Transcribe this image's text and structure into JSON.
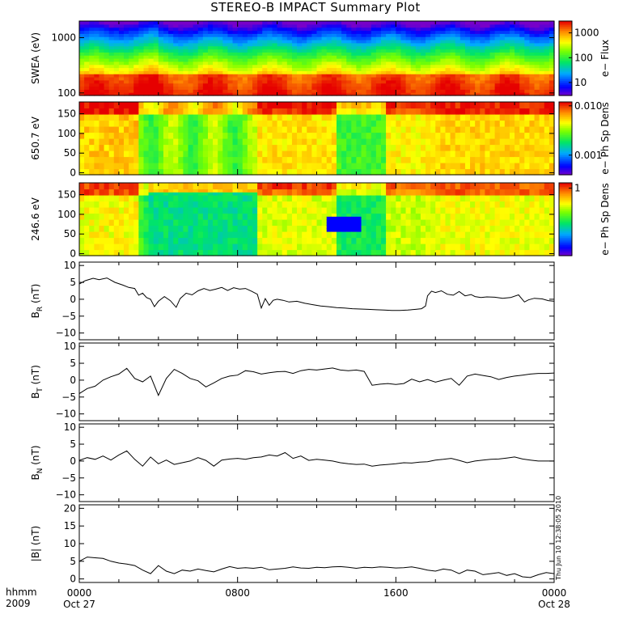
{
  "title": "STEREO-B IMPACT Summary Plot",
  "timestamp": "Thu Jun 10 12:38:05 2010",
  "x_axis": {
    "row1_label": "hhmm",
    "row2_label": "2009",
    "ticks": [
      {
        "hour": 0,
        "time": "0000",
        "date": "Oct 27"
      },
      {
        "hour": 8,
        "time": "0800",
        "date": ""
      },
      {
        "hour": 16,
        "time": "1600",
        "date": ""
      },
      {
        "hour": 24,
        "time": "0000",
        "date": "Oct 28"
      }
    ]
  },
  "colors": {
    "axis": "#000000",
    "line": "#000000",
    "background": "#ffffff"
  },
  "chart_data": [
    {
      "type": "heatmap",
      "panel": "swea",
      "ylabel": "SWEA (eV)",
      "yscale": "log",
      "ylim": [
        90,
        2000
      ],
      "yticks": [
        {
          "v": 100,
          "t": "100"
        },
        {
          "v": 1000,
          "t": "1000"
        }
      ],
      "colorbar": {
        "label": "e− Flux",
        "scale": "log",
        "range": [
          3,
          3000
        ],
        "ticks": [
          {
            "v": 10,
            "t": "10"
          },
          {
            "v": 100,
            "t": "100"
          },
          {
            "v": 1000,
            "t": "1000"
          }
        ]
      },
      "description_values": {
        "energy_band_high_flux_eV": [
          90,
          200
        ],
        "energy_band_low_flux_eV": [
          1500,
          2000
        ]
      }
    },
    {
      "type": "heatmap",
      "panel": "pad650",
      "ylabel": "650.7 eV",
      "ylim": [
        -5,
        180
      ],
      "yticks": [
        {
          "v": 0,
          "t": "0"
        },
        {
          "v": 50,
          "t": "50"
        },
        {
          "v": 100,
          "t": "100"
        },
        {
          "v": 150,
          "t": "150"
        }
      ],
      "colorbar": {
        "label": "e− Ph Sp Dens",
        "scale": "log",
        "range": [
          0.0004,
          0.012
        ],
        "ticks": [
          {
            "v": 0.001,
            "t": "0.001"
          },
          {
            "v": 0.01,
            "t": "0.010"
          }
        ]
      }
    },
    {
      "type": "heatmap",
      "panel": "pad246",
      "ylabel": "246.6 eV",
      "ylim": [
        -5,
        180
      ],
      "yticks": [
        {
          "v": 0,
          "t": "0"
        },
        {
          "v": 50,
          "t": "50"
        },
        {
          "v": 100,
          "t": "100"
        },
        {
          "v": 150,
          "t": "150"
        }
      ],
      "colorbar": {
        "label": "e− Ph Sp Dens",
        "scale": "log",
        "range": [
          0.3,
          1.1
        ],
        "ticks": [
          {
            "v": 1,
            "t": "1"
          }
        ]
      }
    },
    {
      "type": "line",
      "panel": "br",
      "ylabel": "B",
      "ysub": "R",
      "yunit": " (nT)",
      "ylim": [
        -12,
        11
      ],
      "yticks": [
        {
          "v": -10,
          "t": "−10"
        },
        {
          "v": -5,
          "t": "−5"
        },
        {
          "v": 0,
          "t": "0"
        },
        {
          "v": 5,
          "t": "5"
        },
        {
          "v": 10,
          "t": "10"
        }
      ],
      "x": [
        0,
        0.3,
        0.7,
        1.0,
        1.4,
        1.8,
        2.2,
        2.5,
        2.8,
        3.0,
        3.2,
        3.4,
        3.6,
        3.8,
        4.0,
        4.3,
        4.6,
        4.9,
        5.1,
        5.4,
        5.7,
        6.0,
        6.3,
        6.6,
        6.9,
        7.2,
        7.5,
        7.8,
        8.1,
        8.4,
        8.7,
        9.0,
        9.2,
        9.4,
        9.6,
        9.8,
        10.0,
        10.3,
        10.6,
        11.0,
        11.4,
        11.8,
        12.2,
        12.6,
        13.0,
        13.4,
        13.8,
        14.2,
        14.6,
        15.0,
        15.4,
        15.8,
        16.2,
        16.6,
        17.0,
        17.3,
        17.5,
        17.6,
        17.8,
        18.0,
        18.3,
        18.6,
        18.9,
        19.2,
        19.5,
        19.8,
        20.0,
        20.3,
        20.6,
        21.0,
        21.4,
        21.8,
        22.2,
        22.5,
        22.7,
        23.0,
        23.4,
        23.7,
        24.0
      ],
      "y": [
        4.5,
        5.5,
        6.2,
        5.8,
        6.3,
        5.0,
        4.2,
        3.5,
        3.2,
        1.2,
        1.8,
        0.5,
        0.0,
        -2.2,
        -0.6,
        0.8,
        -0.4,
        -2.4,
        0.2,
        1.8,
        1.3,
        2.5,
        3.2,
        2.6,
        3.0,
        3.5,
        2.6,
        3.4,
        3.0,
        3.2,
        2.4,
        1.5,
        -2.6,
        0.2,
        -1.8,
        -0.3,
        0.0,
        -0.3,
        -0.8,
        -0.6,
        -1.2,
        -1.6,
        -2.0,
        -2.2,
        -2.5,
        -2.6,
        -2.8,
        -2.9,
        -3.0,
        -3.1,
        -3.2,
        -3.3,
        -3.3,
        -3.2,
        -3.0,
        -2.8,
        -2.0,
        1.0,
        2.4,
        2.0,
        2.5,
        1.5,
        1.2,
        2.3,
        1.0,
        1.4,
        0.8,
        0.5,
        0.7,
        0.6,
        0.3,
        0.5,
        1.3,
        -0.8,
        -0.2,
        0.3,
        0.1,
        -0.4,
        -0.6
      ]
    },
    {
      "type": "line",
      "panel": "bt",
      "ylabel": "B",
      "ysub": "T",
      "yunit": " (nT)",
      "ylim": [
        -12,
        11
      ],
      "yticks": [
        {
          "v": -10,
          "t": "−10"
        },
        {
          "v": -5,
          "t": "−5"
        },
        {
          "v": 0,
          "t": "0"
        },
        {
          "v": 5,
          "t": "5"
        },
        {
          "v": 10,
          "t": "10"
        }
      ],
      "x": [
        0,
        0.4,
        0.8,
        1.2,
        1.6,
        2.0,
        2.4,
        2.8,
        3.2,
        3.6,
        4.0,
        4.4,
        4.8,
        5.2,
        5.6,
        6.0,
        6.4,
        6.8,
        7.2,
        7.6,
        8.0,
        8.4,
        8.8,
        9.2,
        9.6,
        10.0,
        10.4,
        10.8,
        11.2,
        11.6,
        12.0,
        12.4,
        12.8,
        13.2,
        13.6,
        14.0,
        14.4,
        14.8,
        15.2,
        15.6,
        16.0,
        16.4,
        16.8,
        17.2,
        17.6,
        18.0,
        18.4,
        18.8,
        19.2,
        19.6,
        20.0,
        20.4,
        20.8,
        21.2,
        21.6,
        22.0,
        22.4,
        22.8,
        23.2,
        23.6,
        24.0
      ],
      "y": [
        -4.0,
        -2.5,
        -1.8,
        0.0,
        1.0,
        1.8,
        3.5,
        0.5,
        -0.5,
        1.2,
        -4.5,
        0.5,
        3.2,
        2.0,
        0.5,
        -0.2,
        -2.0,
        -0.8,
        0.5,
        1.2,
        1.5,
        2.8,
        2.5,
        1.8,
        2.2,
        2.5,
        2.6,
        2.0,
        2.8,
        3.2,
        3.0,
        3.3,
        3.6,
        3.0,
        2.8,
        3.0,
        2.6,
        -1.5,
        -1.2,
        -1.0,
        -1.3,
        -1.0,
        0.3,
        -0.5,
        0.2,
        -0.6,
        0.0,
        0.5,
        -1.5,
        1.2,
        1.8,
        1.4,
        1.0,
        0.2,
        0.8,
        1.2,
        1.5,
        1.8,
        2.0,
        2.0,
        2.1
      ]
    },
    {
      "type": "line",
      "panel": "bn",
      "ylabel": "B",
      "ysub": "N",
      "yunit": " (nT)",
      "ylim": [
        -12,
        11
      ],
      "yticks": [
        {
          "v": -10,
          "t": "−10"
        },
        {
          "v": -5,
          "t": "−5"
        },
        {
          "v": 0,
          "t": "0"
        },
        {
          "v": 5,
          "t": "5"
        },
        {
          "v": 10,
          "t": "10"
        }
      ],
      "x": [
        0,
        0.4,
        0.8,
        1.2,
        1.6,
        2.0,
        2.4,
        2.8,
        3.2,
        3.6,
        4.0,
        4.4,
        4.8,
        5.2,
        5.6,
        6.0,
        6.4,
        6.8,
        7.2,
        7.6,
        8.0,
        8.4,
        8.8,
        9.2,
        9.6,
        10.0,
        10.4,
        10.8,
        11.2,
        11.6,
        12.0,
        12.4,
        12.8,
        13.2,
        13.6,
        14.0,
        14.4,
        14.8,
        15.2,
        15.6,
        16.0,
        16.4,
        16.8,
        17.2,
        17.6,
        18.0,
        18.4,
        18.8,
        19.2,
        19.6,
        20.0,
        20.4,
        20.8,
        21.2,
        21.6,
        22.0,
        22.4,
        22.8,
        23.2,
        23.6,
        24.0
      ],
      "y": [
        0.2,
        1.0,
        0.5,
        1.5,
        0.3,
        1.8,
        3.0,
        0.5,
        -1.5,
        1.2,
        -0.8,
        0.3,
        -1.0,
        -0.5,
        0.0,
        1.0,
        0.2,
        -1.5,
        0.3,
        0.6,
        0.8,
        0.5,
        1.0,
        1.2,
        1.8,
        1.5,
        2.5,
        0.8,
        1.5,
        0.2,
        0.5,
        0.3,
        0.0,
        -0.5,
        -0.8,
        -1.0,
        -0.9,
        -1.5,
        -1.2,
        -1.0,
        -0.8,
        -0.5,
        -0.6,
        -0.3,
        -0.2,
        0.3,
        0.5,
        0.8,
        0.2,
        -0.5,
        0.0,
        0.3,
        0.5,
        0.6,
        0.9,
        1.2,
        0.6,
        0.3,
        0.0,
        0.0,
        0.0
      ]
    },
    {
      "type": "line",
      "panel": "bmag",
      "ylabel": "|B|",
      "ysub": "",
      "yunit": " (nT)",
      "ylim": [
        -1,
        21
      ],
      "yticks": [
        {
          "v": 0,
          "t": "0"
        },
        {
          "v": 5,
          "t": "5"
        },
        {
          "v": 10,
          "t": "10"
        },
        {
          "v": 15,
          "t": "15"
        },
        {
          "v": 20,
          "t": "20"
        }
      ],
      "x": [
        0,
        0.4,
        0.8,
        1.2,
        1.6,
        2.0,
        2.4,
        2.8,
        3.2,
        3.6,
        4.0,
        4.4,
        4.8,
        5.2,
        5.6,
        6.0,
        6.4,
        6.8,
        7.2,
        7.6,
        8.0,
        8.4,
        8.8,
        9.2,
        9.6,
        10.0,
        10.4,
        10.8,
        11.2,
        11.6,
        12.0,
        12.4,
        12.8,
        13.2,
        13.6,
        14.0,
        14.4,
        14.8,
        15.2,
        15.6,
        16.0,
        16.4,
        16.8,
        17.2,
        17.6,
        18.0,
        18.4,
        18.8,
        19.2,
        19.6,
        20.0,
        20.4,
        20.8,
        21.2,
        21.6,
        22.0,
        22.4,
        22.8,
        23.2,
        23.6,
        24.0
      ],
      "y": [
        5.0,
        6.2,
        6.0,
        5.8,
        5.0,
        4.5,
        4.2,
        3.8,
        2.5,
        1.5,
        3.8,
        2.2,
        1.5,
        2.5,
        2.2,
        2.8,
        2.4,
        2.0,
        2.8,
        3.5,
        3.0,
        3.2,
        3.0,
        3.3,
        2.6,
        2.8,
        3.0,
        3.4,
        3.1,
        3.0,
        3.3,
        3.2,
        3.4,
        3.5,
        3.3,
        3.0,
        3.3,
        3.2,
        3.4,
        3.3,
        3.1,
        3.2,
        3.4,
        3.0,
        2.5,
        2.2,
        2.8,
        2.5,
        1.5,
        2.5,
        2.2,
        1.2,
        1.5,
        1.8,
        1.0,
        1.5,
        0.6,
        0.4,
        1.2,
        1.8,
        1.5
      ]
    }
  ]
}
